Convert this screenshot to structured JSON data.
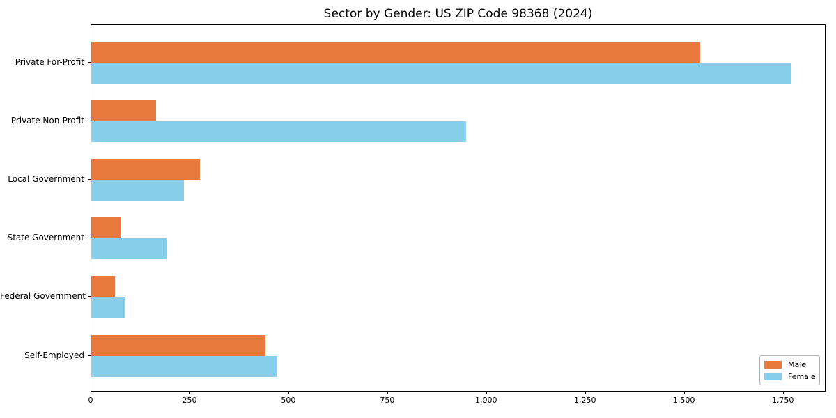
{
  "chart_data": {
    "type": "bar",
    "orientation": "horizontal",
    "title": "Sector by Gender: US ZIP Code 98368 (2024)",
    "categories": [
      "Private For-Profit",
      "Private Non-Profit",
      "Local Government",
      "State Government",
      "Federal Government",
      "Self-Employed"
    ],
    "series": [
      {
        "name": "Male",
        "color": "#e8793d",
        "values": [
          1540,
          163,
          275,
          75,
          60,
          440
        ]
      },
      {
        "name": "Female",
        "color": "#87ceeb",
        "values": [
          1770,
          948,
          235,
          190,
          85,
          470
        ]
      }
    ],
    "xlabel": "",
    "ylabel": "",
    "xlim": [
      0,
      1858
    ],
    "xticks": [
      0,
      250,
      500,
      750,
      1000,
      1250,
      1500,
      1750
    ],
    "xtick_labels": [
      "0",
      "250",
      "500",
      "750",
      "1,000",
      "1,250",
      "1,500",
      "1,750"
    ],
    "grid": false,
    "legend": {
      "position": "lower right",
      "entries": [
        "Male",
        "Female"
      ]
    }
  },
  "colors": {
    "male": "#e8793d",
    "female": "#87ceeb",
    "spine": "#000000",
    "legend_border": "#b0b0b0",
    "background": "#ffffff"
  }
}
